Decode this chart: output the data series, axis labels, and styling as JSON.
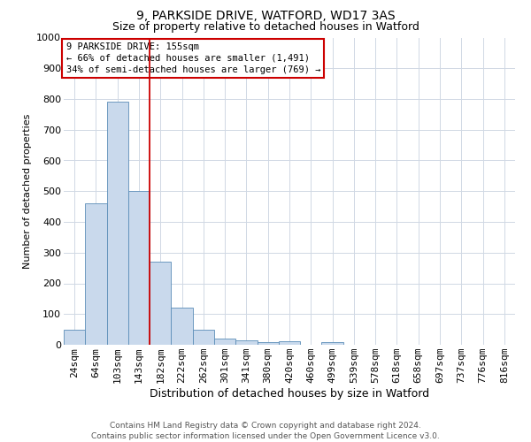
{
  "title": "9, PARKSIDE DRIVE, WATFORD, WD17 3AS",
  "subtitle": "Size of property relative to detached houses in Watford",
  "xlabel": "Distribution of detached houses by size in Watford",
  "ylabel": "Number of detached properties",
  "footer_line1": "Contains HM Land Registry data © Crown copyright and database right 2024.",
  "footer_line2": "Contains public sector information licensed under the Open Government Licence v3.0.",
  "bar_color": "#c9d9ec",
  "bar_edge_color": "#5b8db8",
  "grid_color": "#d0d8e4",
  "annotation_box_color": "#cc0000",
  "vline_color": "#cc0000",
  "categories": [
    "24sqm",
    "64sqm",
    "103sqm",
    "143sqm",
    "182sqm",
    "222sqm",
    "262sqm",
    "301sqm",
    "341sqm",
    "380sqm",
    "420sqm",
    "460sqm",
    "499sqm",
    "539sqm",
    "578sqm",
    "618sqm",
    "658sqm",
    "697sqm",
    "737sqm",
    "776sqm",
    "816sqm"
  ],
  "values": [
    48,
    460,
    790,
    500,
    270,
    120,
    50,
    20,
    13,
    10,
    12,
    0,
    10,
    0,
    0,
    0,
    0,
    0,
    0,
    0,
    0
  ],
  "property_label": "9 PARKSIDE DRIVE: 155sqm",
  "annotation_line1": "← 66% of detached houses are smaller (1,491)",
  "annotation_line2": "34% of semi-detached houses are larger (769) →",
  "vline_position": 3.5,
  "ylim": [
    0,
    1000
  ],
  "yticks": [
    0,
    100,
    200,
    300,
    400,
    500,
    600,
    700,
    800,
    900,
    1000
  ],
  "background_color": "#ffffff",
  "title_fontsize": 10,
  "subtitle_fontsize": 9,
  "ylabel_fontsize": 8,
  "xlabel_fontsize": 9,
  "tick_fontsize": 8,
  "annotation_fontsize": 7.5,
  "footer_fontsize": 6.5
}
